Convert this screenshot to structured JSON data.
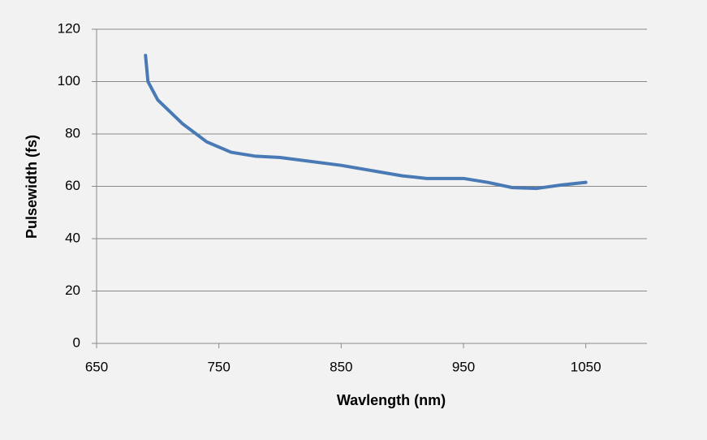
{
  "chart_data": {
    "type": "line",
    "x_label": "Wavlength (nm)",
    "y_label": "Pulsewidth (fs)",
    "x": [
      690,
      691,
      692,
      700,
      720,
      740,
      760,
      780,
      800,
      850,
      900,
      920,
      950,
      970,
      990,
      1010,
      1030,
      1050
    ],
    "series": [
      {
        "color": "#4a7ab5",
        "values": [
          110,
          105,
          100,
          93,
          84,
          77,
          73,
          71.5,
          71,
          68,
          64,
          63,
          63,
          61.5,
          59.5,
          59.2,
          60.5,
          61.5
        ]
      }
    ],
    "xlim": [
      650,
      1100
    ],
    "xticks": [
      650,
      750,
      850,
      950,
      1050
    ],
    "ylim": [
      0,
      120
    ],
    "yticks": [
      0,
      20,
      40,
      60,
      80,
      100,
      120
    ],
    "grid": true
  }
}
